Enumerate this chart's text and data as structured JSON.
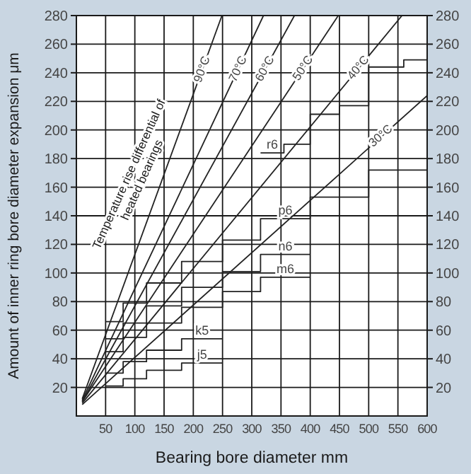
{
  "chart_data": {
    "type": "line",
    "xlabel": "Bearing bore diameter   mm",
    "ylabel": "Amount of inner ring bore diameter expansion   μm",
    "xlim": [
      0,
      600
    ],
    "xticks": [
      50,
      100,
      150,
      200,
      250,
      300,
      350,
      400,
      450,
      500,
      550,
      600
    ],
    "ylim": [
      0,
      280
    ],
    "yticks": [
      20,
      40,
      60,
      80,
      100,
      120,
      140,
      160,
      180,
      200,
      220,
      240,
      260,
      280
    ],
    "y2lim": [
      0,
      280
    ],
    "y2ticks": [
      20,
      40,
      60,
      80,
      100,
      120,
      140,
      160,
      180,
      200,
      220,
      240,
      260,
      280
    ],
    "grid": true,
    "annotations": [
      "Temperature rise differential of heated bearings"
    ],
    "series": [
      {
        "name": "90°C",
        "color": "#222222",
        "x": [
          10,
          249
        ],
        "values": [
          12,
          280
        ]
      },
      {
        "name": "70°C",
        "color": "#222222",
        "x": [
          10,
          320
        ],
        "values": [
          11,
          280
        ]
      },
      {
        "name": "60°C",
        "color": "#222222",
        "x": [
          10,
          373
        ],
        "values": [
          10,
          280
        ]
      },
      {
        "name": "50°C",
        "color": "#222222",
        "x": [
          10,
          448
        ],
        "values": [
          10,
          280
        ]
      },
      {
        "name": "40°C",
        "color": "#222222",
        "x": [
          10,
          557
        ],
        "values": [
          9,
          280
        ]
      },
      {
        "name": "30°C",
        "color": "#222222",
        "x": [
          10,
          600
        ],
        "values": [
          8,
          224
        ]
      },
      {
        "name": "j5",
        "type": "step",
        "color": "#222222",
        "x": [
          50,
          80,
          120,
          180,
          250
        ],
        "values": [
          21,
          26,
          32,
          37,
          37
        ]
      },
      {
        "name": "k5",
        "type": "step",
        "color": "#222222",
        "x": [
          50,
          80,
          120,
          180,
          250
        ],
        "values": [
          30,
          38,
          46,
          54,
          54
        ]
      },
      {
        "name": "m6",
        "type": "step",
        "color": "#222222",
        "x": [
          50,
          80,
          120,
          180,
          250,
          315,
          400
        ],
        "values": [
          45,
          55,
          65,
          76,
          87,
          97,
          97
        ]
      },
      {
        "name": "n6",
        "type": "step",
        "color": "#222222",
        "x": [
          50,
          80,
          120,
          180,
          250,
          315,
          400
        ],
        "values": [
          54,
          65,
          77,
          90,
          101,
          113,
          113
        ]
      },
      {
        "name": "p6",
        "type": "step",
        "color": "#222222",
        "x": [
          50,
          80,
          120,
          180,
          250,
          315,
          400,
          500,
          600
        ],
        "values": [
          66,
          79,
          93,
          108,
          123,
          138,
          153,
          172,
          172
        ]
      },
      {
        "name": "r6",
        "type": "step",
        "color": "#222222",
        "x": [
          315,
          355,
          400,
          450,
          500,
          560,
          600
        ],
        "values": [
          184,
          190,
          211,
          217,
          244,
          249,
          249
        ]
      }
    ]
  }
}
